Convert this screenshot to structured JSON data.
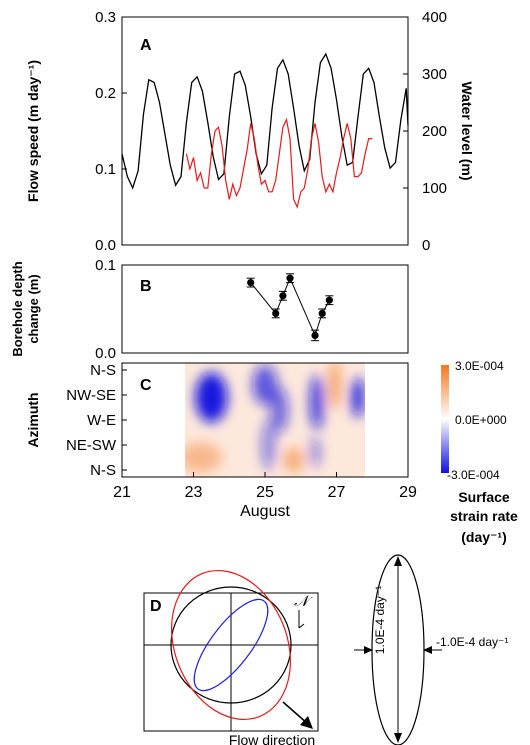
{
  "colors": {
    "water_level": "#000000",
    "flow_speed": "#e41a1c",
    "ellipse_black": "#000000",
    "ellipse_red": "#e41a1c",
    "ellipse_blue": "#1f1fd6",
    "neg": "#1010e0",
    "pos": "#f07a20"
  },
  "chart_data": [
    {
      "id": "A",
      "type": "line",
      "panel_label": "A",
      "ylabel": "Flow speed (m day⁻¹)",
      "ylabel_right": "Water level (m)",
      "ylim": [
        0,
        0.3
      ],
      "ylim_right": [
        0,
        400
      ],
      "xlim": [
        21,
        29
      ],
      "yticks": [
        "0.0",
        "0.1",
        "0.2",
        "0.3"
      ],
      "yticks_right": [
        "0",
        "100",
        "200",
        "300",
        "400"
      ],
      "series": [
        {
          "color": "#000000",
          "axis": "right",
          "x": [
            21.0,
            21.15,
            21.3,
            21.45,
            21.6,
            21.75,
            21.9,
            22.05,
            22.2,
            22.35,
            22.5,
            22.65,
            22.8,
            22.95,
            23.1,
            23.25,
            23.4,
            23.55,
            23.7,
            23.85,
            24.0,
            24.15,
            24.3,
            24.45,
            24.6,
            24.75,
            24.9,
            25.05,
            25.2,
            25.35,
            25.5,
            25.65,
            25.8,
            25.95,
            26.1,
            26.25,
            26.4,
            26.55,
            26.7,
            26.85,
            27.0,
            27.15,
            27.3,
            27.45,
            27.6,
            27.75,
            27.9,
            28.05,
            28.2,
            28.35,
            28.5,
            28.65,
            28.8,
            28.95,
            29.0
          ],
          "values": [
            160,
            120,
            100,
            130,
            230,
            290,
            285,
            250,
            195,
            140,
            105,
            120,
            215,
            285,
            295,
            270,
            215,
            155,
            115,
            125,
            225,
            300,
            305,
            280,
            225,
            160,
            125,
            140,
            240,
            310,
            325,
            300,
            240,
            175,
            130,
            150,
            250,
            320,
            335,
            310,
            255,
            190,
            140,
            145,
            225,
            300,
            310,
            285,
            225,
            170,
            135,
            145,
            220,
            275,
            210
          ]
        },
        {
          "color": "#e41a1c",
          "axis": "left",
          "x": [
            22.8,
            22.9,
            23.0,
            23.1,
            23.2,
            23.3,
            23.4,
            23.5,
            23.6,
            23.7,
            23.8,
            23.9,
            24.0,
            24.1,
            24.2,
            24.3,
            24.4,
            24.5,
            24.6,
            24.7,
            24.8,
            24.9,
            25.0,
            25.1,
            25.2,
            25.3,
            25.4,
            25.5,
            25.6,
            25.7,
            25.8,
            25.9,
            26.0,
            26.1,
            26.2,
            26.3,
            26.4,
            26.5,
            26.6,
            26.7,
            26.8,
            26.9,
            27.0,
            27.1,
            27.2,
            27.3,
            27.4,
            27.5,
            27.6,
            27.7,
            27.8,
            27.9,
            28.0
          ],
          "values": [
            0.12,
            0.1,
            0.115,
            0.085,
            0.095,
            0.075,
            0.075,
            0.12,
            0.15,
            0.155,
            0.13,
            0.085,
            0.06,
            0.08,
            0.065,
            0.075,
            0.1,
            0.125,
            0.16,
            0.14,
            0.105,
            0.08,
            0.085,
            0.07,
            0.07,
            0.085,
            0.12,
            0.155,
            0.165,
            0.14,
            0.06,
            0.05,
            0.07,
            0.075,
            0.1,
            0.14,
            0.16,
            0.135,
            0.09,
            0.07,
            0.08,
            0.07,
            0.095,
            0.115,
            0.14,
            0.16,
            0.14,
            0.09,
            0.09,
            0.095,
            0.12,
            0.14,
            0.14
          ]
        }
      ]
    },
    {
      "id": "B",
      "type": "scatter",
      "panel_label": "B",
      "ylabel_line1": "Borehole depth",
      "ylabel_line2": "change (m)",
      "ylim": [
        0,
        0.1
      ],
      "xlim": [
        21,
        29
      ],
      "yticks": [
        "0.0",
        "0.1"
      ],
      "points": [
        {
          "x": 24.6,
          "y": 0.08,
          "err": 0.005
        },
        {
          "x": 25.3,
          "y": 0.045,
          "err": 0.005
        },
        {
          "x": 25.5,
          "y": 0.065,
          "err": 0.005
        },
        {
          "x": 25.7,
          "y": 0.085,
          "err": 0.005
        },
        {
          "x": 26.4,
          "y": 0.02,
          "err": 0.006
        },
        {
          "x": 26.6,
          "y": 0.045,
          "err": 0.005
        },
        {
          "x": 26.8,
          "y": 0.06,
          "err": 0.005
        }
      ]
    },
    {
      "id": "C",
      "type": "heatmap",
      "panel_label": "C",
      "ylabel": "Azimuth",
      "yticks": [
        "N-S",
        "NW-SE",
        "W-E",
        "NE-SW",
        "N-S"
      ],
      "xlim": [
        21,
        29
      ],
      "xticks": [
        "21",
        "23",
        "25",
        "27",
        "29"
      ],
      "xlabel": "August",
      "data_xrange": [
        22.8,
        27.8
      ],
      "colorbar": {
        "ticks": [
          "3.0E-004",
          "0.0E+000",
          "-3.0E-004"
        ],
        "label_line1": "Surface",
        "label_line2": "strain rate",
        "label_line3": "(day⁻¹)",
        "range": [
          -0.0003,
          0.0003
        ]
      },
      "blobs": [
        {
          "x": 23.5,
          "y": 1.1,
          "rx": 0.45,
          "ry": 1.0,
          "v": -0.0003
        },
        {
          "x": 25.0,
          "y": 0.6,
          "rx": 0.35,
          "ry": 0.8,
          "v": -0.00018
        },
        {
          "x": 25.4,
          "y": 1.6,
          "rx": 0.25,
          "ry": 0.9,
          "v": -0.00015
        },
        {
          "x": 26.45,
          "y": 1.3,
          "rx": 0.2,
          "ry": 1.1,
          "v": -0.00022
        },
        {
          "x": 27.6,
          "y": 1.1,
          "rx": 0.2,
          "ry": 0.8,
          "v": -0.00025
        },
        {
          "x": 25.8,
          "y": 3.6,
          "rx": 0.3,
          "ry": 0.5,
          "v": 0.00012
        },
        {
          "x": 26.95,
          "y": 0.6,
          "rx": 0.18,
          "ry": 1.0,
          "v": 0.00015
        },
        {
          "x": 23.2,
          "y": 3.5,
          "rx": 0.6,
          "ry": 0.6,
          "v": 8e-05
        },
        {
          "x": 25.1,
          "y": 3.0,
          "rx": 0.2,
          "ry": 1.0,
          "v": -0.0001
        },
        {
          "x": 26.4,
          "y": 3.3,
          "rx": 0.15,
          "ry": 0.6,
          "v": -0.0001
        }
      ]
    }
  ],
  "panel_d": {
    "label": "D",
    "north_symbol": "𝒩",
    "flow_direction_label": "Flow direction",
    "scale_label_vertical": "1.0E-4 day⁻¹",
    "scale_label_horizontal": "-1.0E-4 day⁻¹"
  }
}
